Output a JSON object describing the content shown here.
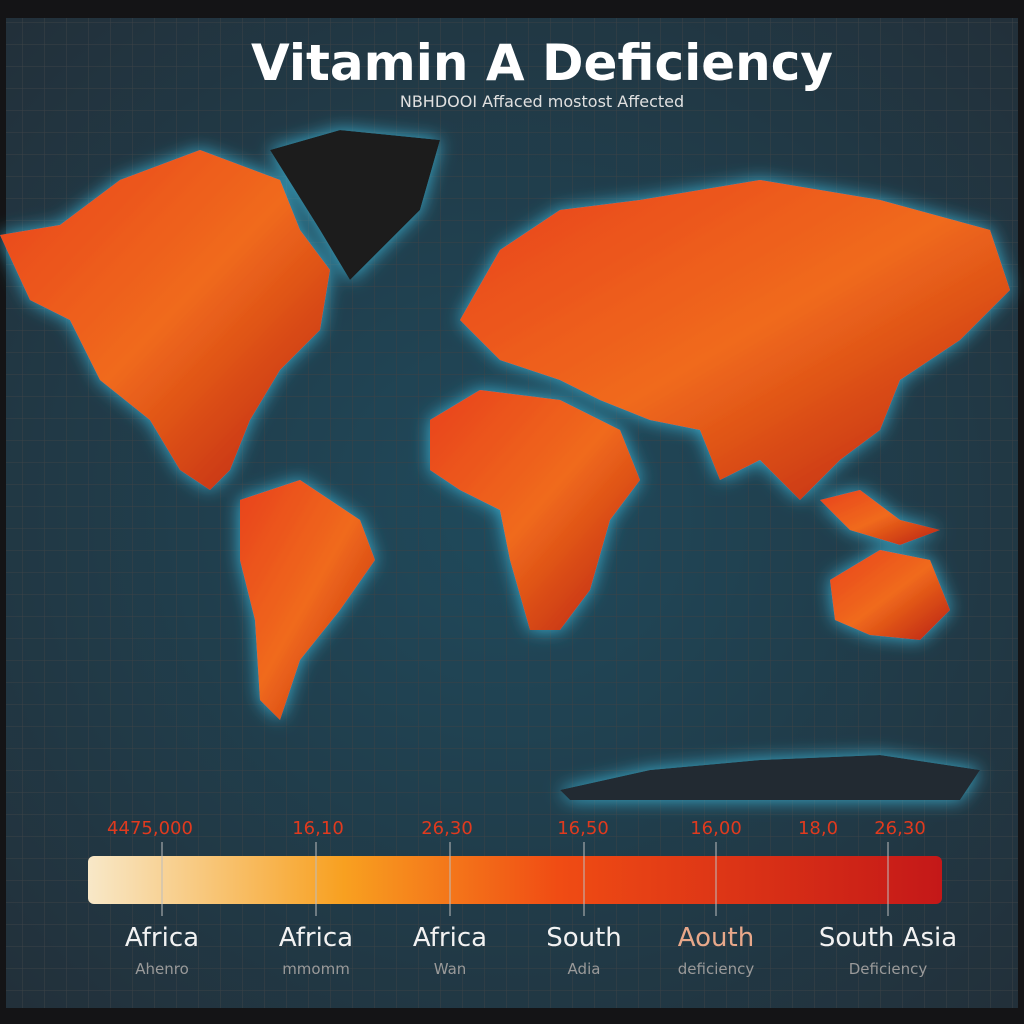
{
  "header": {
    "title": "Vitamin A Deficiency",
    "subtitle": "NBHDOOI Affaced mostost Affected"
  },
  "legend": {
    "scale_labels": [
      "4475,000",
      "16,10",
      "26,30",
      "16,50",
      "16,00",
      "18,0",
      "26,30"
    ],
    "regions": [
      {
        "label": "Africa",
        "note": "Ahenro"
      },
      {
        "label": "Africa",
        "note": "mmomm"
      },
      {
        "label": "Africa",
        "note": "Wan"
      },
      {
        "label": "South",
        "note": "Adia"
      },
      {
        "label": "Aouth",
        "note": "deficiency"
      },
      {
        "label": "South Asia",
        "note": "Deficiency"
      }
    ]
  }
}
